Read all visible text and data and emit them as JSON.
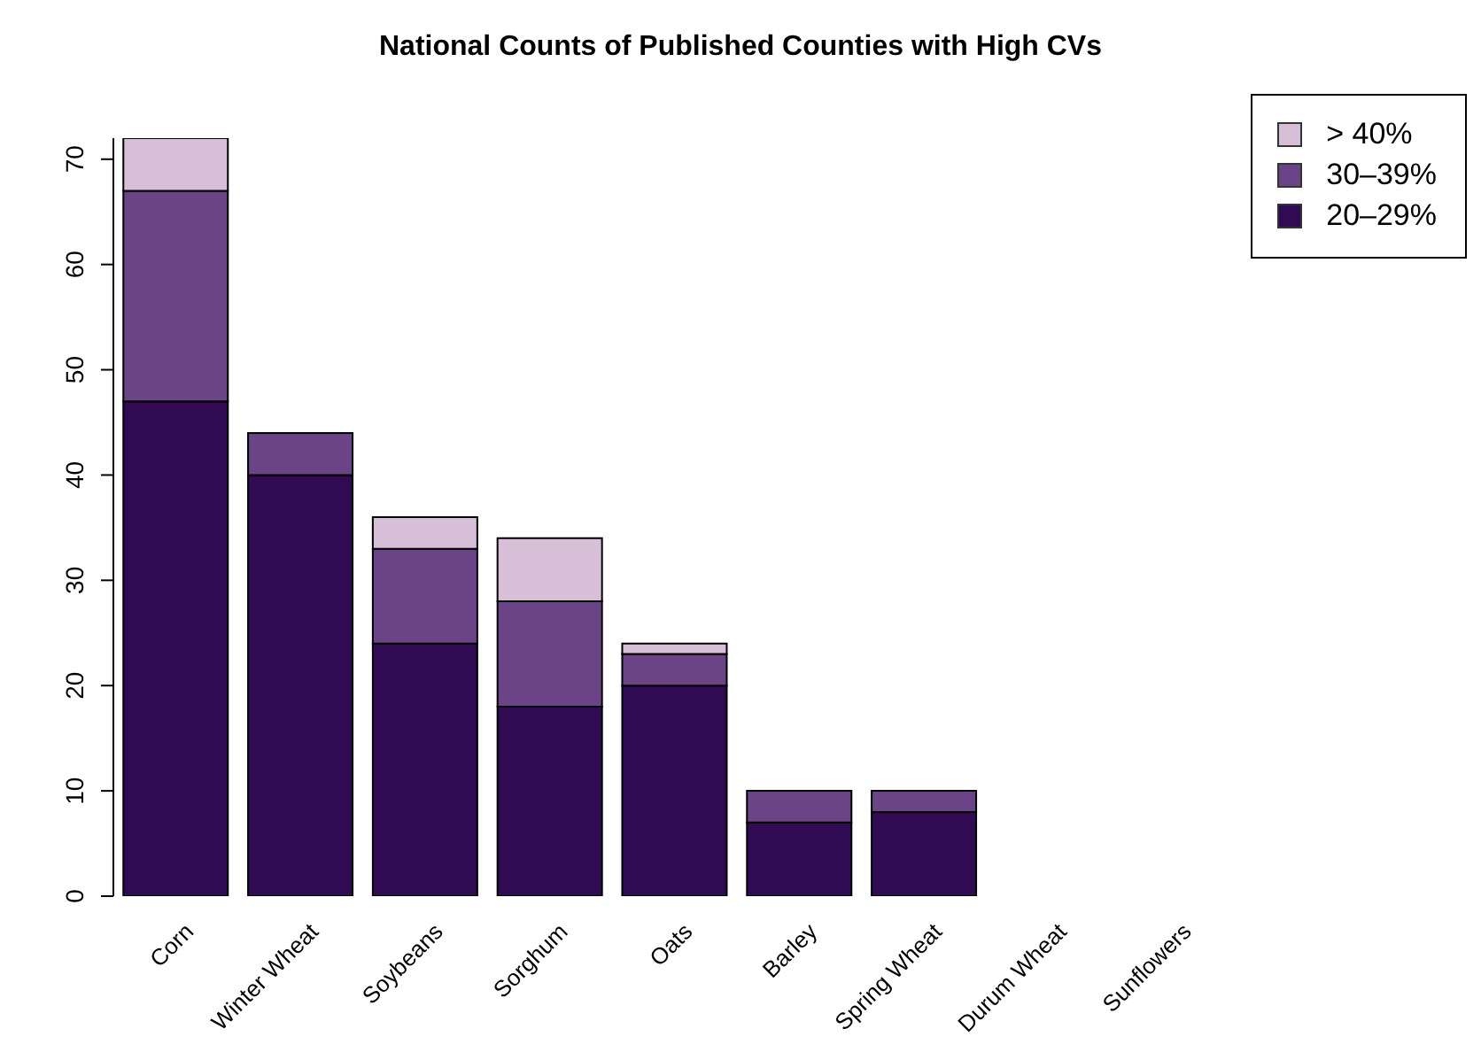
{
  "chart_data": {
    "type": "bar",
    "title": "National Counts of Published Counties with High CVs",
    "categories": [
      "Corn",
      "Winter Wheat",
      "Soybeans",
      "Sorghum",
      "Oats",
      "Barley",
      "Spring Wheat",
      "Durum Wheat",
      "Sunflowers"
    ],
    "stacked": true,
    "series": [
      {
        "name": "20–29%",
        "color": "#310a54",
        "values": [
          47,
          40,
          24,
          18,
          20,
          7,
          8,
          0,
          0
        ]
      },
      {
        "name": "30–39%",
        "color": "#6a4487",
        "values": [
          20,
          4,
          9,
          10,
          3,
          3,
          2,
          0,
          0
        ]
      },
      {
        "name": "> 40%",
        "color": "#d8bfd8",
        "values": [
          5,
          0,
          3,
          6,
          1,
          0,
          0,
          0,
          0
        ]
      }
    ],
    "ylim": [
      0,
      72
    ],
    "yticks": [
      0,
      10,
      20,
      30,
      40,
      50,
      60,
      70
    ],
    "grid": false,
    "legend": "top right"
  }
}
